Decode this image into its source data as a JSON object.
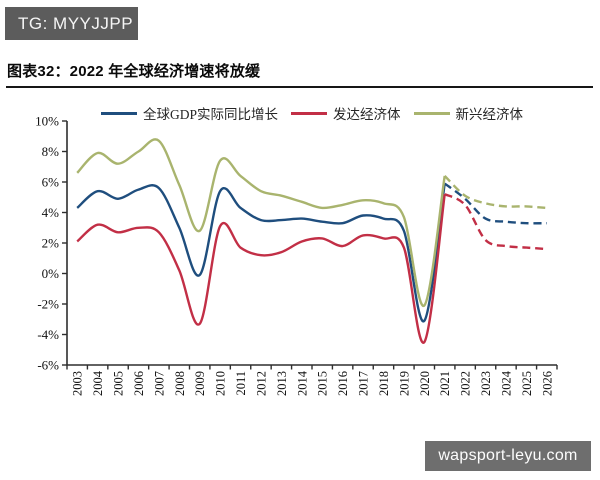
{
  "badge": {
    "text": "TG: MYYJJPP"
  },
  "title": "图表32：2022 年全球经济增速将放缓",
  "watermark": "wapsport-leyu.com",
  "colors": {
    "global_line": "#1f4e7e",
    "advanced_line": "#c22f46",
    "emerging_line": "#a9b46e",
    "axis": "#2e2e2e",
    "badge_bg": "#5c5c5c",
    "watermark_bg": "#6e6e6e"
  },
  "chart_data": {
    "type": "line",
    "title": "2022 年全球经济增速将放缓",
    "xlabel": "",
    "ylabel": "",
    "grid": false,
    "legend_position": "top",
    "x": [
      2003,
      2004,
      2005,
      2006,
      2007,
      2008,
      2009,
      2010,
      2011,
      2012,
      2013,
      2014,
      2015,
      2016,
      2017,
      2018,
      2019,
      2020,
      2021,
      2022,
      2023,
      2024,
      2025,
      2026
    ],
    "ylim": [
      -6,
      10
    ],
    "yticks": [
      {
        "value": 10,
        "label": "10%"
      },
      {
        "value": 8,
        "label": "8%"
      },
      {
        "value": 6,
        "label": "6%"
      },
      {
        "value": 4,
        "label": "4%"
      },
      {
        "value": 2,
        "label": "2%"
      },
      {
        "value": 0,
        "label": "0%"
      },
      {
        "value": -2,
        "label": "-2%"
      },
      {
        "value": -4,
        "label": "-4%"
      },
      {
        "value": -6,
        "label": "-6%"
      }
    ],
    "forecast_start_index": 18,
    "forecast_start_year": 2021,
    "series": [
      {
        "name": "全球GDP实际同比增长",
        "color": "#1f4e7e",
        "values": [
          4.3,
          5.4,
          4.9,
          5.5,
          5.6,
          3.0,
          -0.1,
          5.4,
          4.3,
          3.5,
          3.5,
          3.6,
          3.4,
          3.3,
          3.8,
          3.6,
          2.8,
          -3.1,
          5.9,
          4.9,
          3.6,
          3.4,
          3.3,
          3.3
        ]
      },
      {
        "name": "发达经济体",
        "color": "#c22f46",
        "values": [
          2.1,
          3.2,
          2.7,
          3.0,
          2.7,
          0.2,
          -3.3,
          3.1,
          1.7,
          1.2,
          1.4,
          2.1,
          2.3,
          1.8,
          2.5,
          2.3,
          1.7,
          -4.5,
          5.2,
          4.5,
          2.2,
          1.8,
          1.7,
          1.6
        ]
      },
      {
        "name": "新兴经济体",
        "color": "#a9b46e",
        "values": [
          6.6,
          7.9,
          7.2,
          8.0,
          8.7,
          5.8,
          2.8,
          7.4,
          6.4,
          5.4,
          5.1,
          4.7,
          4.3,
          4.5,
          4.8,
          4.6,
          3.7,
          -2.1,
          6.4,
          5.1,
          4.6,
          4.4,
          4.4,
          4.3
        ]
      }
    ]
  }
}
